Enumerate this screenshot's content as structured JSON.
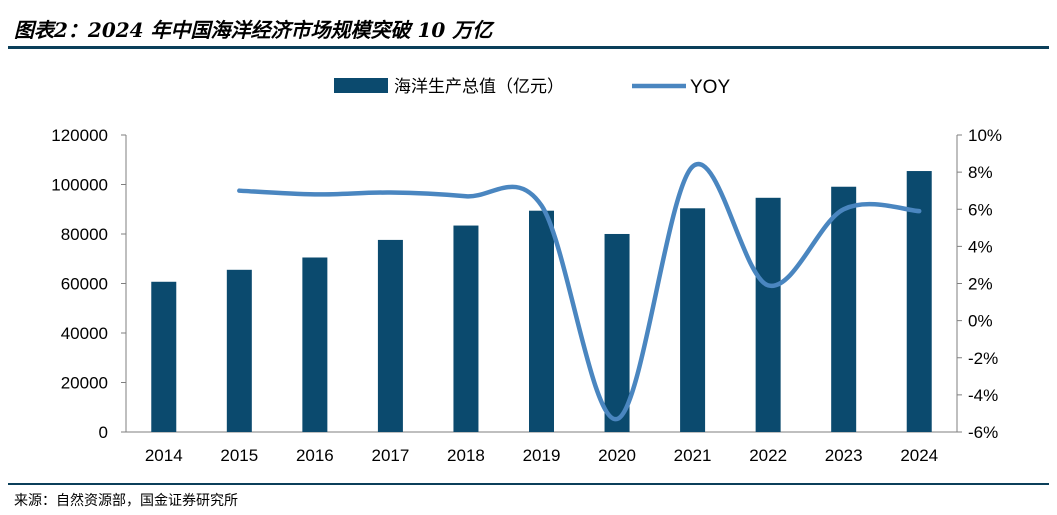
{
  "header": {
    "title": "图表2：2024 年中国海洋经济市场规模突破 10 万亿"
  },
  "footer": {
    "source": "来源：自然资源部，国金证券研究所"
  },
  "colors": {
    "bar": "#0b4a6e",
    "line": "#4a86c0",
    "rule": "#0b3f5a"
  },
  "chart_data": {
    "type": "bar",
    "title": "",
    "categories": [
      "2014",
      "2015",
      "2016",
      "2017",
      "2018",
      "2019",
      "2020",
      "2021",
      "2022",
      "2023",
      "2024"
    ],
    "series": [
      {
        "name": "海洋生产总值（亿元）",
        "type": "bar",
        "axis": "left",
        "values": [
          60699,
          65534,
          70507,
          77611,
          83415,
          89415,
          80010,
          90385,
          94628,
          99097,
          105438
        ]
      },
      {
        "name": "YOY",
        "type": "line",
        "axis": "right",
        "values": [
          null,
          7.0,
          6.8,
          6.9,
          6.7,
          6.2,
          -5.3,
          8.3,
          1.9,
          6.0,
          5.9
        ]
      }
    ],
    "y_left": {
      "min": 0,
      "max": 120000,
      "step": 20000,
      "tick_labels": [
        "0",
        "20000",
        "40000",
        "60000",
        "80000",
        "100000",
        "120000"
      ]
    },
    "y_right": {
      "min": -6,
      "max": 10,
      "step": 2,
      "tick_labels": [
        "-6%",
        "-4%",
        "-2%",
        "0%",
        "2%",
        "4%",
        "6%",
        "8%",
        "10%"
      ]
    },
    "legend": "top-center",
    "grid": false
  }
}
